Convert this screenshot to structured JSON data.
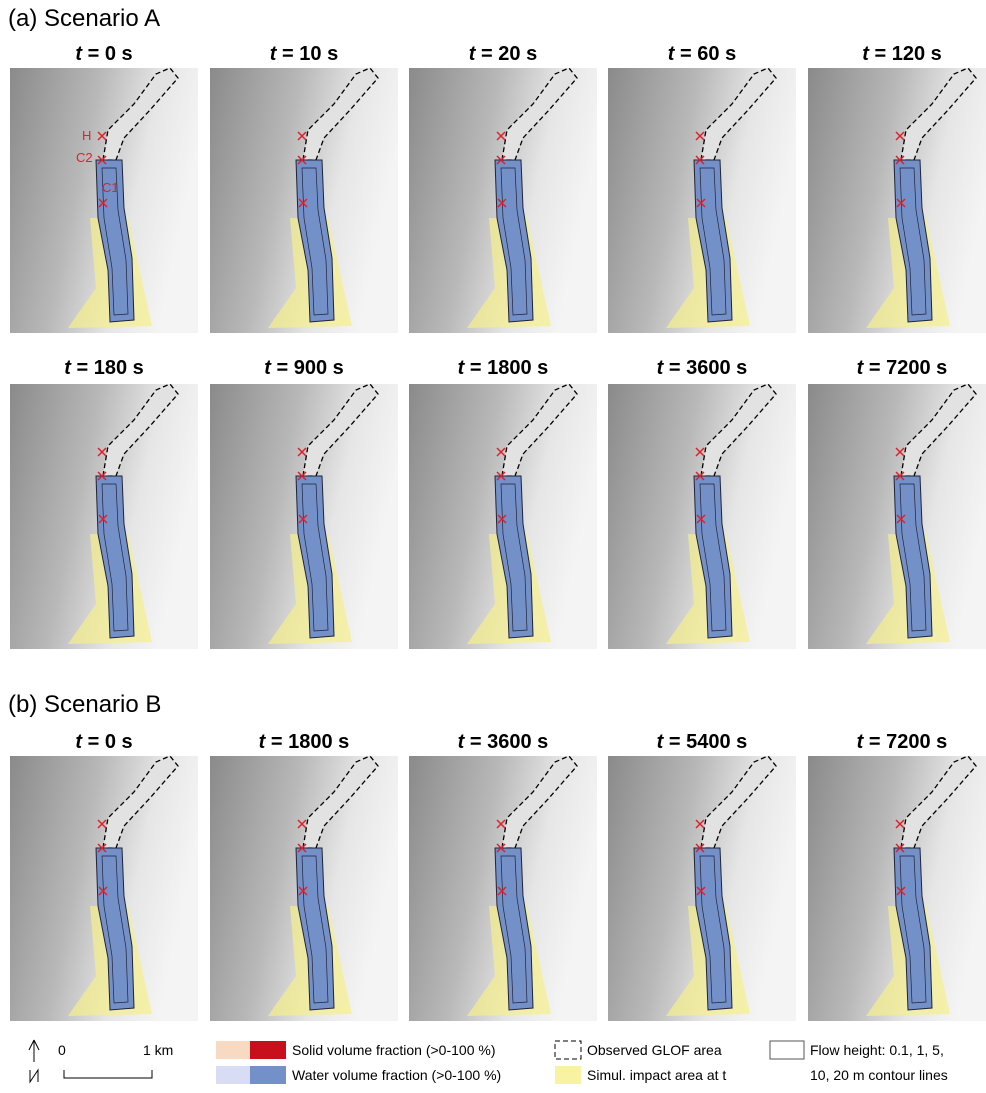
{
  "sections": [
    {
      "title": "(a) Scenario A",
      "panels": [
        {
          "var": "t",
          "label": "= 0 s"
        },
        {
          "var": "t",
          "label": "= 10 s"
        },
        {
          "var": "t",
          "label": "= 20 s"
        },
        {
          "var": "t",
          "label": "= 60 s"
        },
        {
          "var": "t",
          "label": "= 120 s"
        },
        {
          "var": "t",
          "label": "= 180 s"
        },
        {
          "var": "t",
          "label": "= 900 s"
        },
        {
          "var": "t",
          "label": "= 1800 s"
        },
        {
          "var": "t",
          "label": "= 3600 s"
        },
        {
          "var": "t",
          "label": "= 7200 s"
        }
      ]
    },
    {
      "title": "(b) Scenario B",
      "panels": [
        {
          "var": "t",
          "label": "= 0 s"
        },
        {
          "var": "t",
          "label": "= 1800 s"
        },
        {
          "var": "t",
          "label": "= 3600 s"
        },
        {
          "var": "t",
          "label": "= 5400 s"
        },
        {
          "var": "t",
          "label": "= 7200 s"
        }
      ]
    }
  ],
  "markers": [
    "H",
    "C2",
    "C1"
  ],
  "scale_bar": {
    "start": "0",
    "end": "1 km"
  },
  "legend": [
    "Solid volume fraction (>0-100 %)",
    "Water volume fraction (>0-100 %)",
    "Observed GLOF area",
    "Simul. impact area at t",
    "Flow height: 0.1, 1, 5,",
    "10, 20 m contour lines"
  ]
}
